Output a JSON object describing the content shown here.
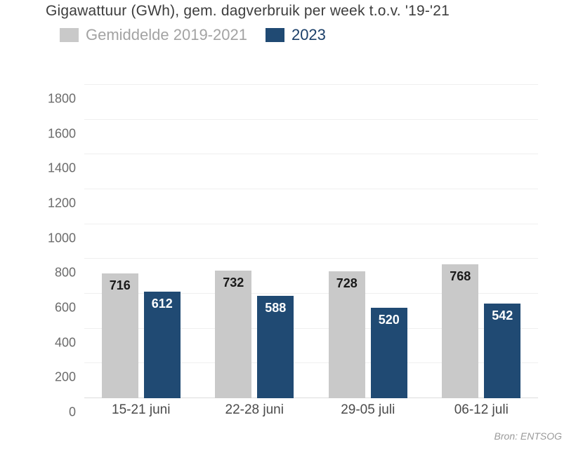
{
  "title": "Gigawattuur (GWh), gem. dagverbruik per week t.o.v. '19-'21",
  "legend": {
    "items": [
      {
        "label": "Gemiddelde 2019-2021",
        "swatch_color": "#c9c9c9",
        "text_color": "#a3a3a3"
      },
      {
        "label": "2023",
        "swatch_color": "#204a73",
        "text_color": "#1b3f69"
      }
    ]
  },
  "source": "Bron: ENTSOG",
  "chart_data": {
    "type": "bar",
    "title": "Gigawattuur (GWh), gem. dagverbruik per week t.o.v. '19-'21",
    "categories": [
      "15-21 juni",
      "22-28 juni",
      "29-05 juli",
      "06-12 juli"
    ],
    "series": [
      {
        "name": "Gemiddelde 2019-2021",
        "color": "#c9c9c9",
        "label_color": "#1a1a1a",
        "values": [
          716,
          732,
          728,
          768
        ]
      },
      {
        "name": "2023",
        "color": "#204a73",
        "label_color": "#ffffff",
        "values": [
          612,
          588,
          520,
          542
        ]
      }
    ],
    "xlabel": "",
    "ylabel": "",
    "ylim": [
      0,
      1800
    ],
    "yticks": [
      0,
      200,
      400,
      600,
      800,
      1000,
      1200,
      1400,
      1600,
      1800
    ],
    "grid": true,
    "legend_position": "top",
    "value_labels": "inside-top",
    "source": "Bron: ENTSOG"
  }
}
